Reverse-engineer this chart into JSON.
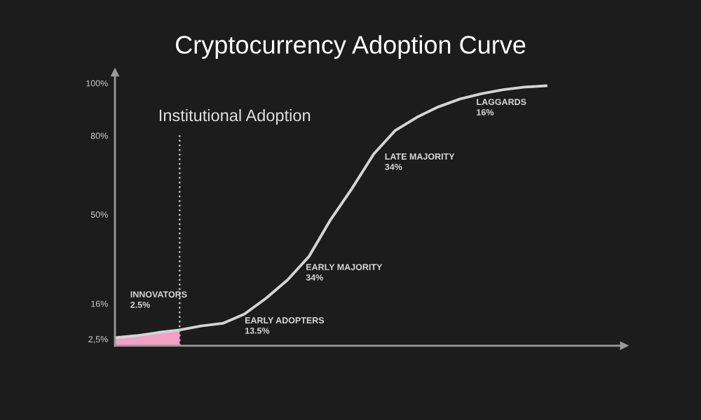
{
  "chart_data": {
    "type": "line",
    "title": "Cryptocurrency Adoption Curve",
    "categories": [
      null,
      null,
      null,
      null,
      null,
      null,
      null,
      null,
      null,
      null,
      null,
      null,
      null,
      null,
      null,
      null,
      null,
      null,
      null,
      null,
      null
    ],
    "series": [
      {
        "color": "#d4d4d4",
        "values": [
          3,
          3.8,
          5,
          6,
          7.5,
          8.5,
          12,
          18,
          25,
          34,
          48,
          60,
          73,
          82,
          87,
          91,
          94,
          96,
          97.5,
          98.5,
          99
        ]
      },
      {
        "type": "area",
        "color": "#f2a0c4",
        "values": [
          3,
          3.8,
          5,
          6,
          null,
          null,
          null,
          null,
          null,
          null,
          null,
          null,
          null,
          null,
          null,
          null,
          null,
          null,
          null,
          null,
          null
        ]
      }
    ],
    "ylim": [
      0,
      104
    ],
    "yticks": [
      {
        "value": 2.5,
        "label": "2,5%"
      },
      {
        "value": 16,
        "label": "16%"
      },
      {
        "value": 50,
        "label": "50%"
      },
      {
        "value": 80,
        "label": "80%"
      },
      {
        "value": 100,
        "label": "100%"
      }
    ],
    "tick_labels": "y",
    "ref_lines": [
      {
        "axis": "x",
        "label": "Institutional Adoption",
        "color": "#bbbbbb",
        "line_style": "dotted"
      }
    ],
    "annotations": [
      "INNOVATORS\n2.5%",
      "EARLY ADOPTERS\n13.5%",
      "EARLY MAJORITY\n34%",
      "LATE MAJORITY\n34%",
      "LAGGARDS\n16%"
    ]
  }
}
